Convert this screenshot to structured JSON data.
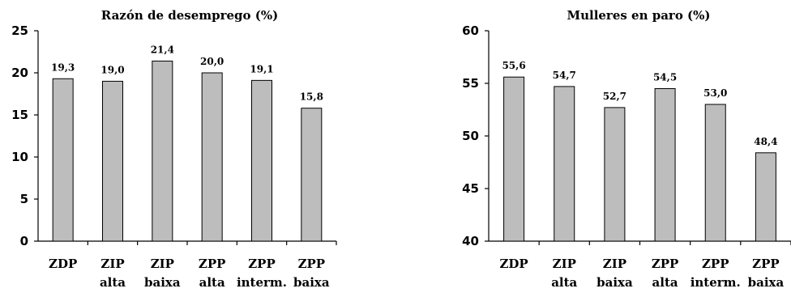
{
  "chart_data": [
    {
      "type": "bar",
      "title": "Razón de desemprego (%)",
      "categories": [
        [
          "ZDP"
        ],
        [
          "ZIP",
          "alta"
        ],
        [
          "ZIP",
          "baixa"
        ],
        [
          "ZPP",
          "alta"
        ],
        [
          "ZPP",
          "interm."
        ],
        [
          "ZPP",
          "baixa"
        ]
      ],
      "values": [
        19.3,
        19.0,
        21.4,
        20.0,
        19.1,
        15.8
      ],
      "data_labels": [
        "19,3",
        "19,0",
        "21,4",
        "20,0",
        "19,1",
        "15,8"
      ],
      "ylim": [
        0,
        25
      ],
      "yticks": [
        0,
        5,
        10,
        15,
        20,
        25
      ],
      "ytick_labels": [
        "0",
        "5",
        "10",
        "15",
        "20",
        "25"
      ],
      "grid": false,
      "bar_color": "#bdbdbd"
    },
    {
      "type": "bar",
      "title": "Mulleres en paro (%)",
      "categories": [
        [
          "ZDP"
        ],
        [
          "ZIP",
          "alta"
        ],
        [
          "ZIP",
          "baixa"
        ],
        [
          "ZPP",
          "alta"
        ],
        [
          "ZPP",
          "interm."
        ],
        [
          "ZPP",
          "baixa"
        ]
      ],
      "values": [
        55.6,
        54.7,
        52.7,
        54.5,
        53.0,
        48.4
      ],
      "data_labels": [
        "55,6",
        "54,7",
        "52,7",
        "54,5",
        "53,0",
        "48,4"
      ],
      "ylim": [
        40,
        60
      ],
      "yticks": [
        40,
        45,
        50,
        55,
        60
      ],
      "ytick_labels": [
        "40",
        "45",
        "50",
        "55",
        "60"
      ],
      "grid": false,
      "bar_color": "#bdbdbd"
    }
  ]
}
